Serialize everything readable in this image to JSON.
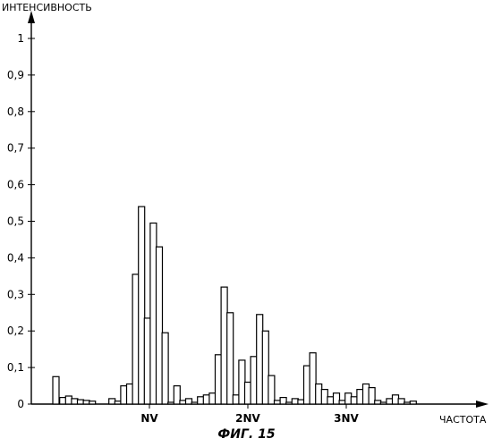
{
  "chart_data": {
    "type": "bar",
    "ylabel": "ИНТЕНСИВНОСТЬ",
    "xlabel": "ЧАСТОТА",
    "caption": "ФИГ. 15",
    "ylim": [
      0,
      1.0
    ],
    "yticks": [
      {
        "value": 0,
        "label": "0"
      },
      {
        "value": 0.1,
        "label": "0,1"
      },
      {
        "value": 0.2,
        "label": "0,2"
      },
      {
        "value": 0.3,
        "label": "0,3"
      },
      {
        "value": 0.4,
        "label": "0,4"
      },
      {
        "value": 0.5,
        "label": "0,5"
      },
      {
        "value": 0.6,
        "label": "0,6"
      },
      {
        "value": 0.7,
        "label": "0,7"
      },
      {
        "value": 0.8,
        "label": "0,8"
      },
      {
        "value": 0.9,
        "label": "0,9"
      },
      {
        "value": 1.0,
        "label": "1"
      }
    ],
    "xlim": [
      0,
      4.4
    ],
    "xticks": [
      {
        "value": 1,
        "label": "NV"
      },
      {
        "value": 2,
        "label": "2NV"
      },
      {
        "value": 3,
        "label": "3NV"
      }
    ],
    "grid": false,
    "legend": "none",
    "series": [
      {
        "x": [
          0.05,
          0.12,
          0.18,
          0.24,
          0.3,
          0.36,
          0.42,
          0.62,
          0.68,
          0.74,
          0.8,
          0.86,
          0.92,
          0.98,
          1.04,
          1.1,
          1.16,
          1.22,
          1.28,
          1.34,
          1.4,
          1.46,
          1.52,
          1.58,
          1.64,
          1.7,
          1.76,
          1.82,
          1.88,
          1.94,
          2.0,
          2.06,
          2.12,
          2.18,
          2.24,
          2.3,
          2.36,
          2.42,
          2.48,
          2.54,
          2.6,
          2.66,
          2.72,
          2.78,
          2.84,
          2.9,
          2.96,
          3.02,
          3.08,
          3.14,
          3.2,
          3.26,
          3.32,
          3.38,
          3.44,
          3.5,
          3.56,
          3.62,
          3.68,
          3.74,
          3.8,
          3.86,
          3.92,
          3.98,
          4.04,
          4.1,
          4.16
        ],
        "values": [
          0.075,
          0.018,
          0.022,
          0.015,
          0.012,
          0.01,
          0.008,
          0.015,
          0.008,
          0.05,
          0.055,
          0.355,
          0.54,
          0.235,
          0.495,
          0.43,
          0.195,
          0.005,
          0.05,
          0.01,
          0.015,
          0.005,
          0.02,
          0.025,
          0.03,
          0.135,
          0.32,
          0.25,
          0.025,
          0.12,
          0.06,
          0.13,
          0.245,
          0.2,
          0.078,
          0.01,
          0.018,
          0.005,
          0.015,
          0.012,
          0.105,
          0.14,
          0.055,
          0.04,
          0.02,
          0.03,
          0.01,
          0.03,
          0.02,
          0.04,
          0.055,
          0.045,
          0.01,
          0.005,
          0.015,
          0.025,
          0.015,
          0.005,
          0.008,
          0.0,
          0.0,
          0.0,
          0.0,
          0.0,
          0.0,
          0.0,
          0.0
        ]
      }
    ]
  }
}
